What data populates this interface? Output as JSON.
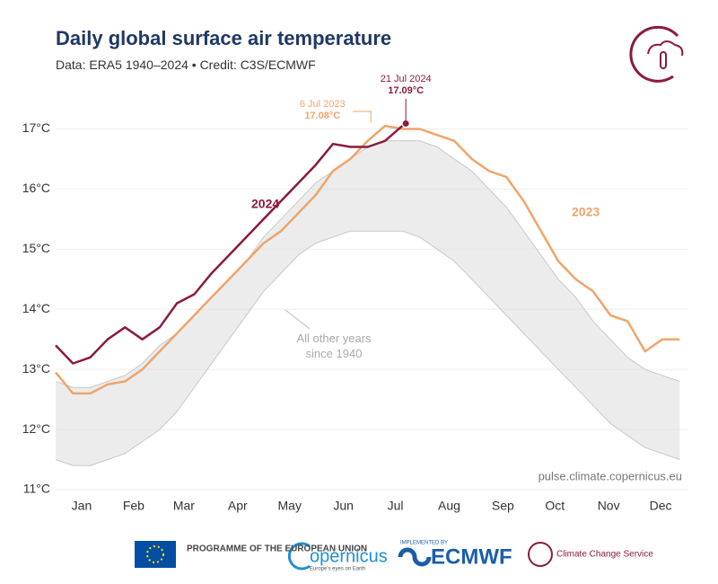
{
  "chart_data": {
    "type": "line",
    "title": "Daily global surface air temperature",
    "subtitle": "Data: ERA5 1940–2024 • Credit: C3S/ECMWF",
    "source": "pulse.climate.copernicus.eu",
    "xlim": [
      1,
      366
    ],
    "xticks": [
      {
        "value": 16,
        "label": "Jan"
      },
      {
        "value": 46,
        "label": "Feb"
      },
      {
        "value": 75,
        "label": "Mar"
      },
      {
        "value": 106,
        "label": "Apr"
      },
      {
        "value": 136,
        "label": "May"
      },
      {
        "value": 167,
        "label": "Jun"
      },
      {
        "value": 197,
        "label": "Jul"
      },
      {
        "value": 228,
        "label": "Aug"
      },
      {
        "value": 259,
        "label": "Sep"
      },
      {
        "value": 289,
        "label": "Oct"
      },
      {
        "value": 320,
        "label": "Nov"
      },
      {
        "value": 350,
        "label": "Dec"
      }
    ],
    "ylim": [
      11,
      17.5
    ],
    "yticks": [
      {
        "value": 11,
        "label": "11°C"
      },
      {
        "value": 12,
        "label": "12°C"
      },
      {
        "value": 13,
        "label": "13°C"
      },
      {
        "value": 14,
        "label": "14°C"
      },
      {
        "value": 15,
        "label": "15°C"
      },
      {
        "value": 16,
        "label": "16°C"
      },
      {
        "value": 17,
        "label": "17°C"
      }
    ],
    "grid": true,
    "x": [
      1,
      11,
      21,
      31,
      41,
      51,
      61,
      71,
      81,
      91,
      101,
      111,
      121,
      131,
      141,
      151,
      161,
      171,
      181,
      191,
      201,
      211,
      221,
      231,
      241,
      251,
      261,
      271,
      281,
      291,
      301,
      311,
      321,
      331,
      341,
      351,
      361
    ],
    "band": {
      "name": "All other years since 1940",
      "color": "#dcdcdc",
      "high": [
        12.8,
        12.7,
        12.7,
        12.8,
        12.9,
        13.1,
        13.4,
        13.6,
        13.9,
        14.2,
        14.5,
        14.8,
        15.2,
        15.5,
        15.8,
        16.1,
        16.3,
        16.5,
        16.7,
        16.8,
        16.8,
        16.8,
        16.7,
        16.5,
        16.3,
        16.0,
        15.7,
        15.3,
        14.9,
        14.5,
        14.2,
        13.8,
        13.5,
        13.2,
        13.0,
        12.9,
        12.8
      ],
      "low": [
        11.5,
        11.4,
        11.4,
        11.5,
        11.6,
        11.8,
        12.0,
        12.3,
        12.7,
        13.1,
        13.5,
        13.9,
        14.3,
        14.6,
        14.9,
        15.1,
        15.2,
        15.3,
        15.3,
        15.3,
        15.3,
        15.2,
        15.0,
        14.8,
        14.5,
        14.2,
        13.9,
        13.6,
        13.3,
        13.0,
        12.7,
        12.4,
        12.1,
        11.9,
        11.7,
        11.6,
        11.5
      ]
    },
    "series": [
      {
        "name": "2023",
        "color": "#f0a46a",
        "values": [
          12.95,
          12.6,
          12.6,
          12.75,
          12.8,
          13.0,
          13.3,
          13.6,
          13.9,
          14.2,
          14.5,
          14.8,
          15.1,
          15.3,
          15.6,
          15.9,
          16.3,
          16.5,
          16.8,
          17.05,
          17.0,
          17.0,
          16.9,
          16.8,
          16.5,
          16.3,
          16.2,
          15.8,
          15.3,
          14.8,
          14.5,
          14.3,
          13.9,
          13.8,
          13.3,
          13.5,
          13.5
        ]
      },
      {
        "name": "2024",
        "color": "#8b1a3f",
        "values": [
          13.4,
          13.1,
          13.2,
          13.5,
          13.7,
          13.5,
          13.7,
          14.1,
          14.25,
          14.6,
          14.9,
          15.2,
          15.5,
          15.8,
          16.1,
          16.4,
          16.75,
          16.7,
          16.7,
          16.8,
          17.05,
          null,
          null,
          null,
          null,
          null,
          null,
          null,
          null,
          null,
          null,
          null,
          null,
          null,
          null,
          null,
          null
        ]
      }
    ],
    "annotations": [
      {
        "text": "6 Jul 2023",
        "x": 187,
        "value": 17.08,
        "value_label": "17.08°C"
      },
      {
        "text": "21 Jul 2024",
        "x": 203,
        "value": 17.09,
        "value_label": "17.09°C"
      }
    ]
  },
  "footer": {
    "eu": "PROGRAMME OF THE EUROPEAN UNION",
    "copernicus": "opernicus",
    "copernicus_tagline": "Europe's eyes on Earth",
    "implemented": "IMPLEMENTED BY",
    "ecmwf": "ECMWF",
    "c3s": "Climate Change Service"
  }
}
